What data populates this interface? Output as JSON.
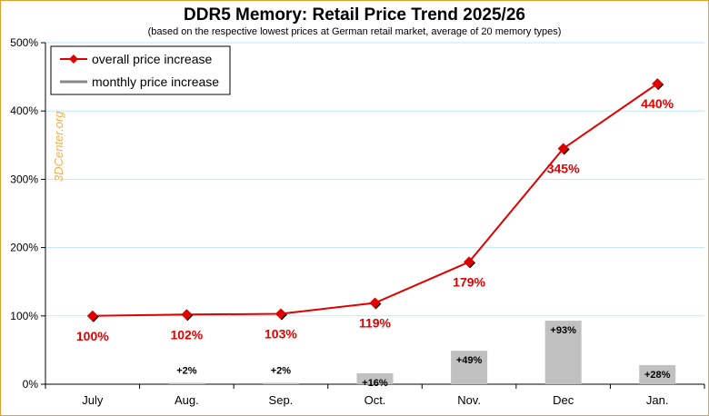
{
  "chart_data": {
    "type": "line",
    "title": "DDR5 Memory: Retail Price Trend 2025/26",
    "subtitle": "(based on the respective lowest prices at German retail market, average of 20 memory types)",
    "categories": [
      "July",
      "Aug.",
      "Sep.",
      "Oct.",
      "Nov.",
      "Dec",
      "Jan."
    ],
    "series": [
      {
        "name": "overall price increase",
        "kind": "line",
        "values": [
          100,
          102,
          103,
          119,
          179,
          345,
          440
        ],
        "labels": [
          "100%",
          "102%",
          "103%",
          "119%",
          "179%",
          "345%",
          "440%"
        ],
        "color": "#e00000"
      },
      {
        "name": "monthly price increase",
        "kind": "bar",
        "values": [
          null,
          2,
          2,
          16,
          49,
          93,
          28
        ],
        "labels": [
          "",
          "+2%",
          "+2%",
          "+16%",
          "+49%",
          "+93%",
          "+28%"
        ],
        "color": "#c0c0c0"
      }
    ],
    "ylim": [
      0,
      500
    ],
    "yticks": [
      "0%",
      "100%",
      "200%",
      "300%",
      "400%",
      "500%"
    ],
    "grid": true,
    "legend_position": "top-left",
    "watermark": "3DCenter.org"
  }
}
